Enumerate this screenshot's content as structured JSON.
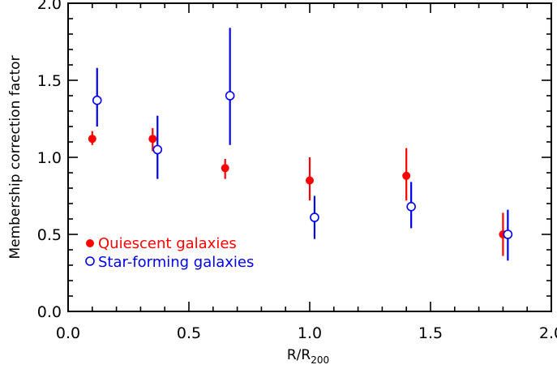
{
  "chart_data": {
    "type": "scatter",
    "xlabel": "R/R",
    "xlabel_subscript": "200",
    "ylabel": "Membership correction factor",
    "xlim": [
      0.0,
      2.0
    ],
    "ylim": [
      0.0,
      2.0
    ],
    "x_ticks": [
      "0.0",
      "0.5",
      "1.0",
      "1.5",
      "2.0"
    ],
    "y_ticks": [
      "0.0",
      "0.5",
      "1.0",
      "1.5",
      "2.0"
    ],
    "x_tick_values": [
      0.0,
      0.5,
      1.0,
      1.5,
      2.0
    ],
    "y_tick_values": [
      0.0,
      0.5,
      1.0,
      1.5,
      2.0
    ],
    "legend_position": "bottom-left",
    "series": [
      {
        "name": "Quiescent galaxies",
        "color": "#ff0000",
        "marker": "filled-circle",
        "points": [
          {
            "x": 0.1,
            "y": 1.12,
            "ylo": 1.08,
            "yhi": 1.17
          },
          {
            "x": 0.35,
            "y": 1.12,
            "ylo": 1.04,
            "yhi": 1.19
          },
          {
            "x": 0.65,
            "y": 0.93,
            "ylo": 0.86,
            "yhi": 0.99
          },
          {
            "x": 1.0,
            "y": 0.85,
            "ylo": 0.72,
            "yhi": 1.0
          },
          {
            "x": 1.4,
            "y": 0.88,
            "ylo": 0.72,
            "yhi": 1.06
          },
          {
            "x": 1.8,
            "y": 0.5,
            "ylo": 0.36,
            "yhi": 0.64
          }
        ]
      },
      {
        "name": "Star-forming galaxies",
        "color": "#0000ee",
        "marker": "open-circle",
        "points": [
          {
            "x": 0.12,
            "y": 1.37,
            "ylo": 1.2,
            "yhi": 1.58
          },
          {
            "x": 0.37,
            "y": 1.05,
            "ylo": 0.86,
            "yhi": 1.27
          },
          {
            "x": 0.67,
            "y": 1.4,
            "ylo": 1.08,
            "yhi": 1.84
          },
          {
            "x": 1.02,
            "y": 0.61,
            "ylo": 0.47,
            "yhi": 0.75
          },
          {
            "x": 1.42,
            "y": 0.68,
            "ylo": 0.54,
            "yhi": 0.84
          },
          {
            "x": 1.82,
            "y": 0.5,
            "ylo": 0.33,
            "yhi": 0.66
          }
        ]
      }
    ]
  }
}
